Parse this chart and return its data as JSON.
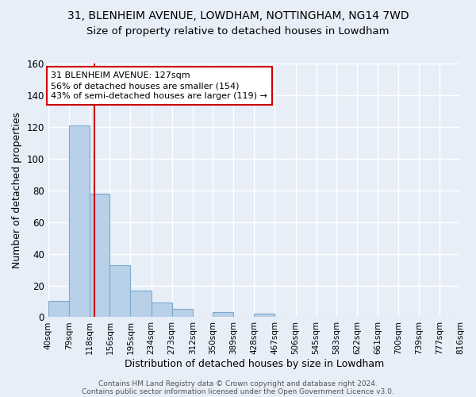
{
  "title": "31, BLENHEIM AVENUE, LOWDHAM, NOTTINGHAM, NG14 7WD",
  "subtitle": "Size of property relative to detached houses in Lowdham",
  "xlabel": "Distribution of detached houses by size in Lowdham",
  "ylabel": "Number of detached properties",
  "background_color": "#e8eef8",
  "bar_color": "#b8d0e8",
  "bar_edge_color": "#7aaacc",
  "grid_color": "#ffffff",
  "bin_edges": [
    40,
    79,
    118,
    156,
    195,
    234,
    273,
    312,
    350,
    389,
    428,
    467,
    506,
    545,
    583,
    622,
    661,
    700,
    739,
    777,
    816
  ],
  "bin_labels": [
    "40sqm",
    "79sqm",
    "118sqm",
    "156sqm",
    "195sqm",
    "234sqm",
    "273sqm",
    "312sqm",
    "350sqm",
    "389sqm",
    "428sqm",
    "467sqm",
    "506sqm",
    "545sqm",
    "583sqm",
    "622sqm",
    "661sqm",
    "700sqm",
    "739sqm",
    "777sqm",
    "816sqm"
  ],
  "counts": [
    10,
    121,
    78,
    33,
    17,
    9,
    5,
    0,
    3,
    0,
    2,
    0,
    0,
    0,
    0,
    0,
    0,
    0,
    0,
    0,
    0
  ],
  "property_size": 127,
  "red_line_color": "#cc0000",
  "annotation_line1": "31 BLENHEIM AVENUE: 127sqm",
  "annotation_line2": "56% of detached houses are smaller (154)",
  "annotation_line3": "43% of semi-detached houses are larger (119) →",
  "annotation_box_color": "#ffffff",
  "annotation_box_edge": "#cc0000",
  "ylim": [
    0,
    160
  ],
  "yticks": [
    0,
    20,
    40,
    60,
    80,
    100,
    120,
    140,
    160
  ],
  "footer_line1": "Contains HM Land Registry data © Crown copyright and database right 2024.",
  "footer_line2": "Contains public sector information licensed under the Open Government Licence v3.0.",
  "title_fontsize": 10,
  "subtitle_fontsize": 9.5,
  "annotation_fontsize": 8,
  "ylabel_fontsize": 9,
  "xlabel_fontsize": 9
}
